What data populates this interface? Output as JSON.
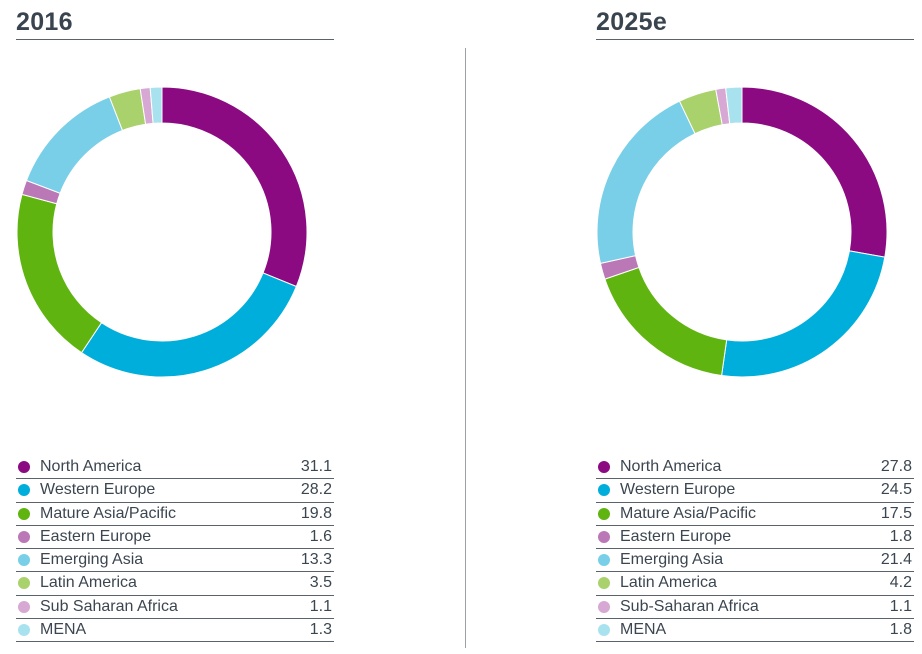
{
  "chart_data": [
    {
      "type": "pie",
      "title": "2016",
      "categories": [
        "North America",
        "Western Europe",
        "Mature Asia/Pacific",
        "Eastern Europe",
        "Emerging Asia",
        "Latin America",
        "Sub Saharan Africa",
        "MENA"
      ],
      "values": [
        31.1,
        28.2,
        19.8,
        1.6,
        13.3,
        3.5,
        1.1,
        1.3
      ],
      "value_labels": [
        "31.1",
        "28.2",
        "19.8",
        "1.6",
        "13.3",
        "3.5",
        "1.1",
        "1.3"
      ],
      "colors": [
        "#8b0a82",
        "#00aedb",
        "#5fb40f",
        "#bb78b6",
        "#78cfe7",
        "#a9d26c",
        "#d7a8d3",
        "#a9e2ef"
      ],
      "legend": "bottom"
    },
    {
      "type": "pie",
      "title": "2025e",
      "categories": [
        "North America",
        "Western Europe",
        "Mature Asia/Pacific",
        "Eastern Europe",
        "Emerging Asia",
        "Latin America",
        "Sub-Saharan Africa",
        "MENA"
      ],
      "values": [
        27.8,
        24.5,
        17.5,
        1.8,
        21.4,
        4.2,
        1.1,
        1.8
      ],
      "value_labels": [
        "27.8",
        "24.5",
        "17.5",
        "1.8",
        "21.4",
        "4.2",
        "1.1",
        "1.8"
      ],
      "colors": [
        "#8b0a82",
        "#00aedb",
        "#5fb40f",
        "#bb78b6",
        "#78cfe7",
        "#a9d26c",
        "#d7a8d3",
        "#a9e2ef"
      ],
      "legend": "bottom"
    }
  ]
}
